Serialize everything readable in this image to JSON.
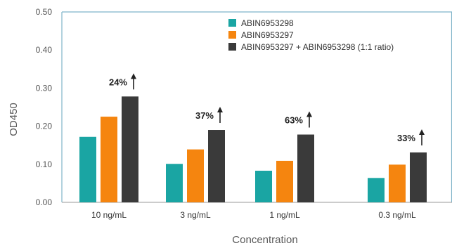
{
  "chart_data": {
    "type": "bar",
    "title": "",
    "xlabel": "Concentration",
    "ylabel": "OD450",
    "ylim": [
      0,
      0.5
    ],
    "yticks": [
      "0.00",
      "0.10",
      "0.20",
      "0.30",
      "0.40",
      "0.50"
    ],
    "categories": [
      "10 ng/mL",
      "3 ng/mL",
      "1 ng/mL",
      "0.3 ng/mL"
    ],
    "series": [
      {
        "name": "ABIN6953298",
        "color": "#1aa5a3",
        "values": [
          0.172,
          0.101,
          0.083,
          0.064
        ]
      },
      {
        "name": "ABIN6953297",
        "color": "#f5850f",
        "values": [
          0.225,
          0.139,
          0.109,
          0.099
        ]
      },
      {
        "name": "ABIN6953297 + ABIN6953298 (1:1 ratio)",
        "color": "#3a3a3a",
        "values": [
          0.278,
          0.19,
          0.178,
          0.131
        ]
      }
    ],
    "annotations": [
      "24%",
      "37%",
      "63%",
      "33%"
    ],
    "annotation_icon": "up-arrow-icon",
    "grid": false,
    "legend_position": "top-center"
  }
}
